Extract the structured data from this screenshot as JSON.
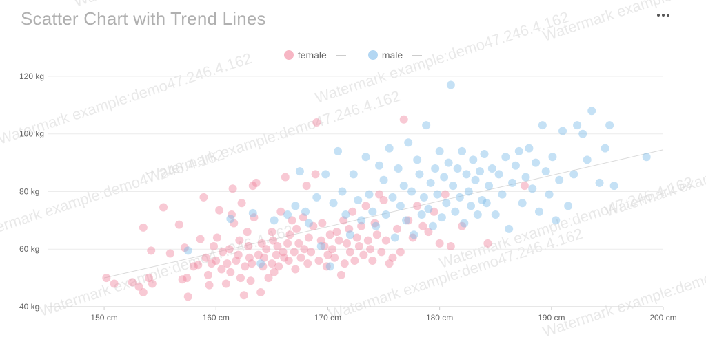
{
  "title": "Scatter Chart with Trend Lines",
  "watermark": "Watermark example:demo47.246.4.162",
  "colors": {
    "female": "#f0879f",
    "male": "#7fbce9",
    "trend": "#dadada",
    "grid": "#ececec"
  },
  "chart_data": {
    "type": "scatter",
    "title": "Scatter Chart with Trend Lines",
    "xlabel": "",
    "ylabel": "",
    "xlim": [
      145,
      200
    ],
    "ylim": [
      40,
      125
    ],
    "xticks": [
      "150 cm",
      "160 cm",
      "170 cm",
      "180 cm",
      "190 cm",
      "200 cm"
    ],
    "yticks": [
      "40 kg",
      "60 kg",
      "80 kg",
      "100 kg",
      "120 kg"
    ],
    "grid": true,
    "legend": "top-center",
    "series": [
      {
        "name": "female",
        "color": "#f0879f",
        "points": [
          [
            150.2,
            50
          ],
          [
            150.9,
            48
          ],
          [
            152.5,
            48.5
          ],
          [
            153.5,
            45
          ],
          [
            153.1,
            47
          ],
          [
            154,
            50
          ],
          [
            154.3,
            48
          ],
          [
            153.5,
            67.5
          ],
          [
            154.2,
            59.5
          ],
          [
            155.3,
            74.5
          ],
          [
            155.9,
            58.5
          ],
          [
            156.7,
            68.5
          ],
          [
            157,
            49.5
          ],
          [
            157.2,
            60.5
          ],
          [
            157.4,
            50
          ],
          [
            157.5,
            43.5
          ],
          [
            158,
            54
          ],
          [
            158.4,
            54.5
          ],
          [
            158.6,
            63.5
          ],
          [
            158.9,
            78
          ],
          [
            159.1,
            57
          ],
          [
            159.3,
            51
          ],
          [
            159.4,
            47.5
          ],
          [
            159.6,
            55
          ],
          [
            159.8,
            61
          ],
          [
            160,
            56
          ],
          [
            160.1,
            64
          ],
          [
            160.3,
            73.5
          ],
          [
            160.5,
            53
          ],
          [
            160.6,
            59
          ],
          [
            160.9,
            48
          ],
          [
            161,
            55
          ],
          [
            161.2,
            60
          ],
          [
            161.3,
            52
          ],
          [
            161.4,
            72
          ],
          [
            161.5,
            81
          ],
          [
            161.6,
            69
          ],
          [
            161.8,
            56
          ],
          [
            162,
            58
          ],
          [
            162.1,
            63
          ],
          [
            162.2,
            50
          ],
          [
            162.3,
            76
          ],
          [
            162.5,
            44
          ],
          [
            162.6,
            54
          ],
          [
            162.8,
            66
          ],
          [
            162.9,
            61
          ],
          [
            163,
            57
          ],
          [
            163.1,
            49
          ],
          [
            163.2,
            55
          ],
          [
            163.3,
            82
          ],
          [
            163.4,
            71
          ],
          [
            163.6,
            83
          ],
          [
            163.8,
            58
          ],
          [
            164,
            45
          ],
          [
            164.1,
            62
          ],
          [
            164.2,
            54
          ],
          [
            164.3,
            57
          ],
          [
            164.5,
            60
          ],
          [
            164.7,
            50
          ],
          [
            165,
            66
          ],
          [
            165,
            55
          ],
          [
            165.1,
            63
          ],
          [
            165.2,
            52
          ],
          [
            165.4,
            58
          ],
          [
            165.5,
            61
          ],
          [
            165.6,
            54
          ],
          [
            165.8,
            73
          ],
          [
            166,
            59
          ],
          [
            166.1,
            57
          ],
          [
            166.2,
            85
          ],
          [
            166.4,
            62
          ],
          [
            166.5,
            56
          ],
          [
            166.6,
            65
          ],
          [
            166.8,
            70
          ],
          [
            167,
            59
          ],
          [
            167.1,
            53
          ],
          [
            167.2,
            67
          ],
          [
            167.4,
            62
          ],
          [
            167.6,
            57
          ],
          [
            167.8,
            71
          ],
          [
            167.9,
            60
          ],
          [
            168.1,
            82
          ],
          [
            168.2,
            55
          ],
          [
            168.3,
            64
          ],
          [
            168.5,
            59
          ],
          [
            168.7,
            68
          ],
          [
            168.9,
            86
          ],
          [
            169,
            104
          ],
          [
            169.2,
            56
          ],
          [
            169.4,
            63
          ],
          [
            169.5,
            69
          ],
          [
            169.7,
            61
          ],
          [
            169.9,
            54
          ],
          [
            170,
            58
          ],
          [
            170.2,
            65
          ],
          [
            170.4,
            60
          ],
          [
            170.6,
            57
          ],
          [
            170.8,
            66
          ],
          [
            171,
            63
          ],
          [
            171.2,
            51
          ],
          [
            171.4,
            70
          ],
          [
            171.5,
            55
          ],
          [
            171.7,
            62
          ],
          [
            171.9,
            67
          ],
          [
            172,
            59
          ],
          [
            172.2,
            73
          ],
          [
            172.4,
            56
          ],
          [
            172.6,
            64
          ],
          [
            172.8,
            61
          ],
          [
            173,
            68
          ],
          [
            173.2,
            58
          ],
          [
            173.4,
            75
          ],
          [
            173.6,
            63
          ],
          [
            173.8,
            60
          ],
          [
            174,
            56
          ],
          [
            174.2,
            69
          ],
          [
            174.4,
            65
          ],
          [
            174.6,
            79
          ],
          [
            174.8,
            59
          ],
          [
            175,
            77
          ],
          [
            175.2,
            63
          ],
          [
            175.5,
            55
          ],
          [
            175.8,
            57
          ],
          [
            176.2,
            67
          ],
          [
            176.5,
            59
          ],
          [
            176.8,
            105
          ],
          [
            177.2,
            70
          ],
          [
            177.6,
            64
          ],
          [
            178,
            75
          ],
          [
            178.5,
            68
          ],
          [
            179,
            66
          ],
          [
            179.5,
            73
          ],
          [
            180,
            62
          ],
          [
            180.5,
            79
          ],
          [
            181,
            61
          ],
          [
            182,
            68
          ],
          [
            184.3,
            62
          ],
          [
            187.6,
            82
          ]
        ]
      },
      {
        "name": "male",
        "color": "#7fbce9",
        "points": [
          [
            157.5,
            59.5
          ],
          [
            161.3,
            70.5
          ],
          [
            163.3,
            72.5
          ],
          [
            164,
            55
          ],
          [
            165.2,
            70
          ],
          [
            166.4,
            72
          ],
          [
            167.1,
            75
          ],
          [
            167.5,
            87
          ],
          [
            168,
            73
          ],
          [
            168.3,
            69
          ],
          [
            169,
            78
          ],
          [
            169.4,
            61
          ],
          [
            169.8,
            86
          ],
          [
            170.2,
            54
          ],
          [
            170.5,
            76
          ],
          [
            170.9,
            94
          ],
          [
            171.3,
            80
          ],
          [
            171.6,
            72
          ],
          [
            172,
            65
          ],
          [
            172.3,
            86
          ],
          [
            172.7,
            77
          ],
          [
            173,
            70
          ],
          [
            173.4,
            92
          ],
          [
            173.7,
            79
          ],
          [
            174,
            73
          ],
          [
            174.3,
            68
          ],
          [
            174.6,
            89
          ],
          [
            175,
            84
          ],
          [
            175.2,
            72
          ],
          [
            175.5,
            95
          ],
          [
            175.8,
            78
          ],
          [
            176,
            64
          ],
          [
            176.3,
            88
          ],
          [
            176.5,
            75
          ],
          [
            176.8,
            82
          ],
          [
            177,
            70
          ],
          [
            177.2,
            97
          ],
          [
            177.5,
            80
          ],
          [
            177.7,
            65
          ],
          [
            178,
            91
          ],
          [
            178.2,
            86
          ],
          [
            178.4,
            72
          ],
          [
            178.6,
            78
          ],
          [
            178.8,
            103
          ],
          [
            179,
            74
          ],
          [
            179.2,
            83
          ],
          [
            179.4,
            68
          ],
          [
            179.6,
            88
          ],
          [
            179.8,
            79
          ],
          [
            180,
            94
          ],
          [
            180.2,
            71
          ],
          [
            180.4,
            85
          ],
          [
            180.6,
            76
          ],
          [
            180.8,
            90
          ],
          [
            181,
            117
          ],
          [
            181.2,
            82
          ],
          [
            181.4,
            73
          ],
          [
            181.6,
            88
          ],
          [
            181.8,
            78
          ],
          [
            182,
            94
          ],
          [
            182.2,
            69
          ],
          [
            182.4,
            86
          ],
          [
            182.6,
            80
          ],
          [
            182.8,
            75
          ],
          [
            183,
            91
          ],
          [
            183.2,
            84
          ],
          [
            183.4,
            72
          ],
          [
            183.6,
            87
          ],
          [
            183.8,
            77
          ],
          [
            184,
            93
          ],
          [
            184.2,
            76
          ],
          [
            184.4,
            82
          ],
          [
            184.7,
            88
          ],
          [
            185,
            72
          ],
          [
            185.3,
            86
          ],
          [
            185.6,
            79
          ],
          [
            185.9,
            92
          ],
          [
            186.2,
            67
          ],
          [
            186.5,
            83
          ],
          [
            186.8,
            89
          ],
          [
            187.1,
            94
          ],
          [
            187.4,
            76
          ],
          [
            187.7,
            85
          ],
          [
            188,
            95
          ],
          [
            188.3,
            81
          ],
          [
            188.6,
            90
          ],
          [
            188.9,
            73
          ],
          [
            189.2,
            103
          ],
          [
            189.5,
            87
          ],
          [
            189.8,
            79
          ],
          [
            190.1,
            92
          ],
          [
            190.4,
            70
          ],
          [
            190.7,
            84
          ],
          [
            191,
            101
          ],
          [
            191.5,
            75
          ],
          [
            192,
            86
          ],
          [
            192.3,
            103
          ],
          [
            192.8,
            100
          ],
          [
            193.2,
            91
          ],
          [
            193.6,
            108
          ],
          [
            194.3,
            83
          ],
          [
            194.8,
            95
          ],
          [
            195.2,
            103
          ],
          [
            195.6,
            82
          ],
          [
            198.5,
            92
          ]
        ]
      }
    ],
    "trend_lines": [
      {
        "from": [
          150,
          50
        ],
        "to": [
          200,
          94.5
        ]
      }
    ]
  },
  "legend": {
    "female": "female",
    "male": "male"
  }
}
